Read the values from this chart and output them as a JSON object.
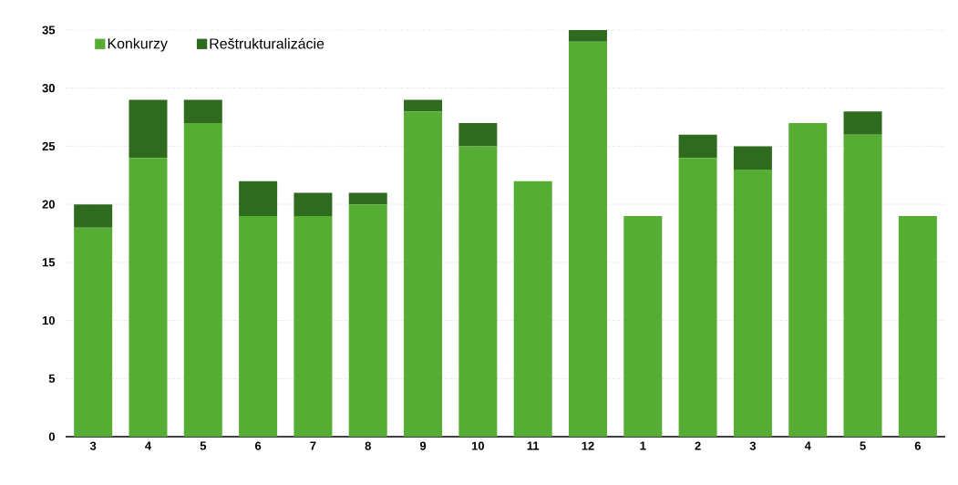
{
  "chart_data": {
    "type": "bar",
    "stacked": true,
    "categories": [
      "3",
      "4",
      "5",
      "6",
      "7",
      "8",
      "9",
      "10",
      "11",
      "12",
      "1",
      "2",
      "3",
      "4",
      "5",
      "6"
    ],
    "series": [
      {
        "name": "Konkurzy",
        "color": "#55ae33",
        "values": [
          18,
          24,
          27,
          19,
          19,
          20,
          28,
          25,
          22,
          34,
          19,
          24,
          23,
          27,
          26,
          19
        ]
      },
      {
        "name": "Reštrukturalizácie",
        "color": "#2e6b1f",
        "values": [
          2,
          5,
          2,
          3,
          2,
          1,
          1,
          2,
          0,
          1,
          0,
          2,
          2,
          0,
          2,
          0
        ]
      }
    ],
    "ylim": [
      0,
      35
    ],
    "yticks": [
      0,
      5,
      10,
      15,
      20,
      25,
      30,
      35
    ],
    "grid": "y",
    "legend": "top left"
  }
}
